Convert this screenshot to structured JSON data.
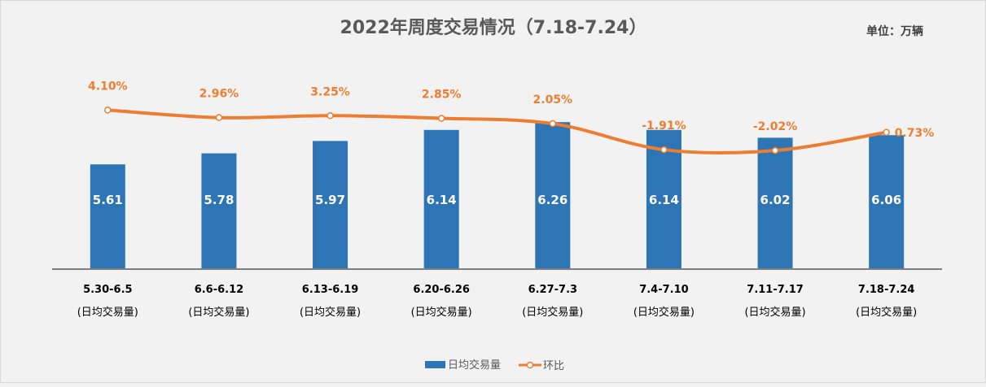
{
  "chart_data": {
    "type": "bar+line",
    "title": "2022年周度交易情况（7.18-7.24）",
    "unit_label": "单位：万辆",
    "categories": [
      "5.30-6.5",
      "6.6-6.12",
      "6.13-6.19",
      "6.20-6.26",
      "6.27-7.3",
      "7.4-7.10",
      "7.11-7.17",
      "7.18-7.24"
    ],
    "category_sublabel": "(日均交易量)",
    "series": [
      {
        "name": "日均交易量",
        "type": "bar",
        "axis": "primary",
        "values": [
          5.61,
          5.78,
          5.97,
          6.14,
          6.26,
          6.14,
          6.02,
          6.06
        ],
        "labels": [
          "5.61",
          "5.78",
          "5.97",
          "6.14",
          "6.26",
          "6.14",
          "6.02",
          "6.06"
        ],
        "color": "#2e75b6"
      },
      {
        "name": "环比",
        "type": "line",
        "smooth": true,
        "axis": "secondary",
        "values": [
          4.1,
          2.96,
          3.25,
          2.85,
          2.05,
          -1.91,
          -2.02,
          0.73
        ],
        "labels": [
          "4.10%",
          "2.96%",
          "3.25%",
          "2.85%",
          "2.05%",
          "-1.91%",
          "-2.02%",
          "0.73%"
        ],
        "color": "#ed7d31"
      }
    ],
    "ylim": [
      4,
      7.5
    ],
    "y2lim": [
      -20,
      14.5
    ],
    "axes_visible": false,
    "grid": false,
    "legend": "bottom"
  }
}
